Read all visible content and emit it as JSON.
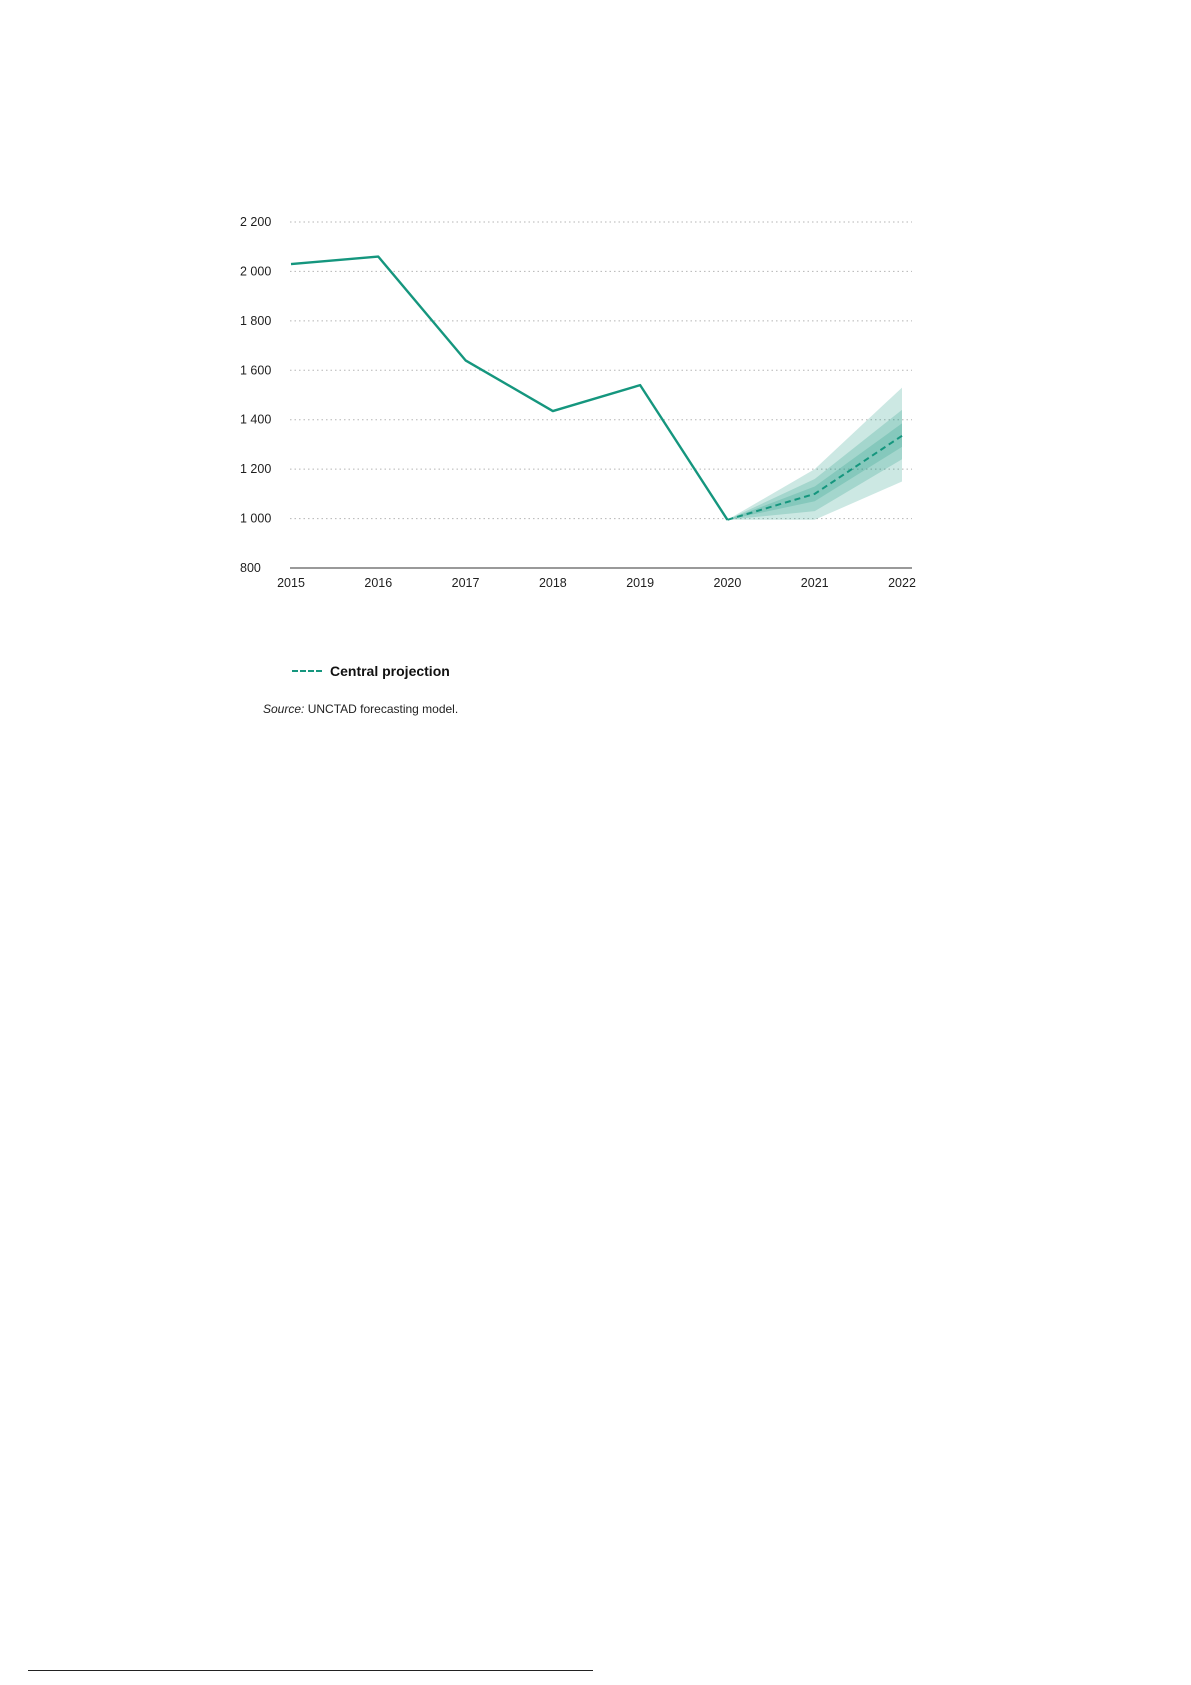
{
  "chart_data": {
    "type": "line",
    "x": [
      "2015",
      "2016",
      "2017",
      "2018",
      "2019",
      "2020",
      "2021",
      "2022"
    ],
    "series": [
      {
        "style": "solid",
        "x": [
          "2015",
          "2016",
          "2017",
          "2018",
          "2019",
          "2020"
        ],
        "values": [
          2030,
          2060,
          1640,
          1435,
          1540,
          995
        ]
      },
      {
        "name": "Central projection",
        "style": "dashed",
        "x": [
          "2020",
          "2021",
          "2022"
        ],
        "values": [
          995,
          1100,
          1335
        ]
      }
    ],
    "bands": [
      {
        "x": [
          "2020",
          "2021",
          "2022"
        ],
        "lower": [
          995,
          995,
          1150
        ],
        "upper": [
          995,
          1200,
          1530
        ]
      },
      {
        "x": [
          "2020",
          "2021",
          "2022"
        ],
        "lower": [
          995,
          1030,
          1240
        ],
        "upper": [
          995,
          1160,
          1440
        ]
      },
      {
        "x": [
          "2020",
          "2021",
          "2022"
        ],
        "lower": [
          995,
          1070,
          1290
        ],
        "upper": [
          995,
          1130,
          1385
        ]
      }
    ],
    "y_ticks": [
      800,
      1000,
      1200,
      1400,
      1600,
      1800,
      2000,
      2200
    ],
    "y_tick_labels": [
      "800",
      "1 000",
      "1 200",
      "1 400",
      "1 600",
      "1 800",
      "2 000",
      "2 200"
    ],
    "ylim": [
      800,
      2200
    ],
    "grid": true,
    "legend_position": "bottom-left",
    "colors": {
      "line": "#15967e",
      "band": "#15967e"
    }
  },
  "legend": {
    "label": "Central projection"
  },
  "source": {
    "label": "Source:",
    "text": " UNCTAD forecasting model."
  }
}
